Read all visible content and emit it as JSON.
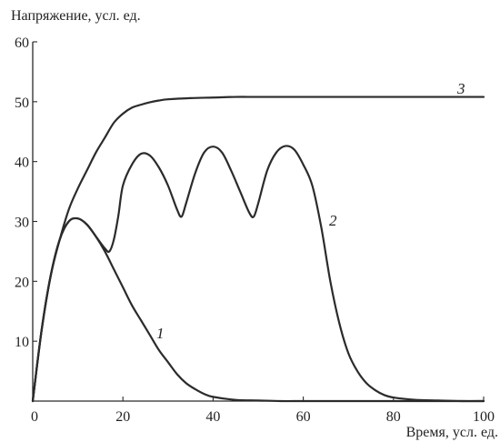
{
  "chart_data": {
    "type": "line",
    "title": "",
    "ylabel": "Напряжение, усл. ед.",
    "xlabel": "Время, усл. ед.",
    "xlim": [
      0,
      100
    ],
    "ylim": [
      0,
      60
    ],
    "x_ticks": [
      0,
      20,
      40,
      60,
      80,
      100
    ],
    "y_ticks": [
      10,
      20,
      30,
      40,
      50,
      60
    ],
    "grid": false,
    "legend": "none",
    "series": [
      {
        "name": "1",
        "x": [
          0,
          2,
          4,
          6,
          8,
          10,
          12,
          14,
          16,
          18,
          20,
          22,
          24,
          26,
          28,
          30,
          32,
          34,
          36,
          38,
          40,
          45,
          50,
          55,
          60,
          70,
          80,
          90,
          100
        ],
        "y": [
          0,
          12,
          21,
          27,
          30,
          30.5,
          29.5,
          27.5,
          25,
          22,
          19,
          16,
          13.5,
          11,
          8.5,
          6.5,
          4.5,
          3,
          2,
          1.2,
          0.7,
          0.2,
          0.1,
          0,
          0,
          0,
          0,
          0,
          0
        ]
      },
      {
        "name": "2",
        "x": [
          0,
          2,
          4,
          6,
          8,
          10,
          12,
          14,
          16,
          17,
          18,
          19,
          20,
          22,
          24,
          26,
          28,
          30,
          32,
          33,
          34,
          36,
          38,
          40,
          42,
          44,
          46,
          48,
          49,
          50,
          52,
          54,
          56,
          58,
          60,
          62,
          64,
          66,
          68,
          70,
          72,
          74,
          76,
          78,
          80,
          85,
          90,
          95,
          100
        ],
        "y": [
          0,
          12,
          21,
          27,
          30,
          30.5,
          29.5,
          27.5,
          25.5,
          25,
          27,
          31,
          36,
          39.5,
          41.3,
          41,
          39,
          36,
          32,
          30.8,
          33,
          38,
          41.5,
          42.5,
          41.5,
          38.5,
          35,
          31.5,
          30.8,
          33,
          38.5,
          41.5,
          42.6,
          42,
          39.5,
          36,
          29,
          20,
          13,
          8,
          5,
          3,
          1.8,
          1,
          0.6,
          0.2,
          0.1,
          0,
          0
        ]
      },
      {
        "name": "3",
        "x": [
          0,
          2,
          4,
          6,
          8,
          10,
          12,
          14,
          16,
          18,
          20,
          22,
          24,
          26,
          28,
          30,
          35,
          40,
          45,
          50,
          60,
          70,
          80,
          90,
          100
        ],
        "y": [
          0,
          12,
          21,
          27,
          32,
          35.5,
          38.5,
          41.5,
          44,
          46.5,
          48,
          49,
          49.5,
          49.9,
          50.2,
          50.4,
          50.6,
          50.7,
          50.8,
          50.8,
          50.8,
          50.8,
          50.8,
          50.8,
          50.8
        ]
      }
    ]
  }
}
